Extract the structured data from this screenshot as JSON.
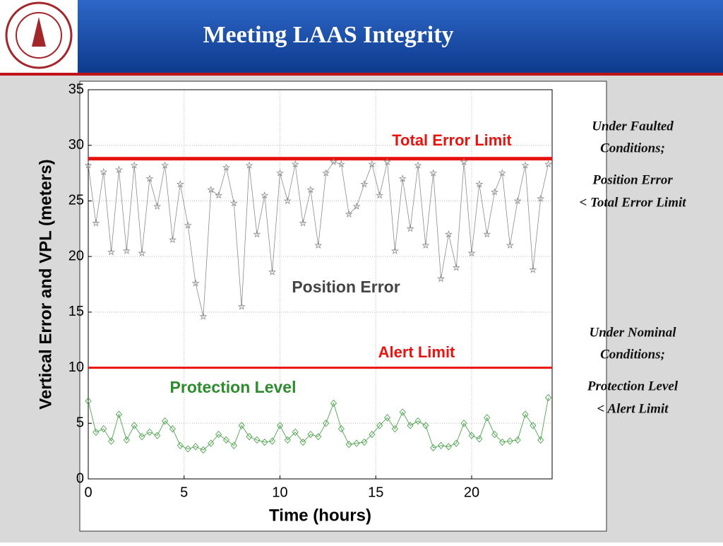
{
  "title": "Meeting LAAS Integrity",
  "notes": [
    {
      "lines": [
        "Under Faulted",
        "Conditions;"
      ],
      "detail": [
        "Position Error",
        "< Total Error Limit"
      ]
    },
    {
      "lines": [
        "Under Nominal",
        "Conditions;"
      ],
      "detail": [
        "Protection Level",
        "< Alert Limit"
      ]
    }
  ],
  "chart_data": {
    "type": "line",
    "xlabel": "Time (hours)",
    "ylabel": "Vertical Error and VPL (meters)",
    "xlim": [
      0,
      24.2
    ],
    "xticks": [
      0,
      5,
      10,
      15,
      20
    ],
    "ylim": [
      0,
      35
    ],
    "yticks": [
      0,
      5,
      10,
      15,
      20,
      25,
      30,
      35
    ],
    "grid": true,
    "x": [
      0,
      0.4,
      0.8,
      1.2,
      1.6,
      2.0,
      2.4,
      2.8,
      3.2,
      3.6,
      4.0,
      4.4,
      4.8,
      5.2,
      5.6,
      6.0,
      6.4,
      6.8,
      7.2,
      7.6,
      8.0,
      8.4,
      8.8,
      9.2,
      9.6,
      10.0,
      10.4,
      10.8,
      11.2,
      11.6,
      12.0,
      12.4,
      12.8,
      13.2,
      13.6,
      14.0,
      14.4,
      14.8,
      15.2,
      15.6,
      16.0,
      16.4,
      16.8,
      17.2,
      17.6,
      18.0,
      18.4,
      18.8,
      19.2,
      19.6,
      20.0,
      20.4,
      20.8,
      21.2,
      21.6,
      22.0,
      22.4,
      22.8,
      23.2,
      23.6,
      24.0
    ],
    "series": [
      {
        "name": "Position Error",
        "color": "#8a8a8a",
        "marker": "star",
        "values": [
          28.2,
          23,
          27.6,
          20.4,
          27.8,
          20.5,
          28.2,
          20.3,
          27,
          24.5,
          28.2,
          21.5,
          26.5,
          22.8,
          17.6,
          14.6,
          26,
          25.5,
          28,
          24.8,
          15.5,
          28.2,
          22,
          25.5,
          18.6,
          27.5,
          25,
          28.3,
          23,
          26,
          21,
          27.5,
          28.5,
          28.3,
          23.8,
          24.5,
          26.5,
          28.3,
          25.5,
          28.5,
          20.5,
          27,
          22.5,
          28.2,
          21,
          27.5,
          18,
          22,
          19,
          28.5,
          20.3,
          26.5,
          22,
          25.8,
          27.5,
          21,
          25,
          28.2,
          18.8,
          25.2,
          28.3
        ]
      },
      {
        "name": "Protection Level",
        "color": "#3a9a3a",
        "marker": "diamond",
        "values": [
          7,
          4.2,
          4.5,
          3.4,
          5.8,
          3.5,
          4.8,
          3.8,
          4.2,
          3.9,
          5.2,
          4.5,
          3,
          2.7,
          2.9,
          2.6,
          3.2,
          4,
          3.5,
          3,
          4.8,
          3.8,
          3.5,
          3.3,
          3.4,
          4.8,
          3.5,
          4.2,
          3.3,
          4,
          3.8,
          5,
          6.8,
          4.5,
          3.1,
          3.2,
          3.3,
          4,
          4.8,
          5.5,
          4.5,
          6,
          4.8,
          5.2,
          4.8,
          2.8,
          3,
          2.9,
          3.2,
          5,
          3.9,
          3.6,
          5.5,
          4,
          3.3,
          3.4,
          3.5,
          5.8,
          4.8,
          3.5,
          7.3
        ]
      }
    ],
    "hlines": [
      {
        "label": "Total Error Limit",
        "value": 28.8,
        "color": "#e8130f",
        "width": 5
      },
      {
        "label": "Alert Limit",
        "value": 10,
        "color": "#e8130f",
        "width": 3
      }
    ]
  }
}
